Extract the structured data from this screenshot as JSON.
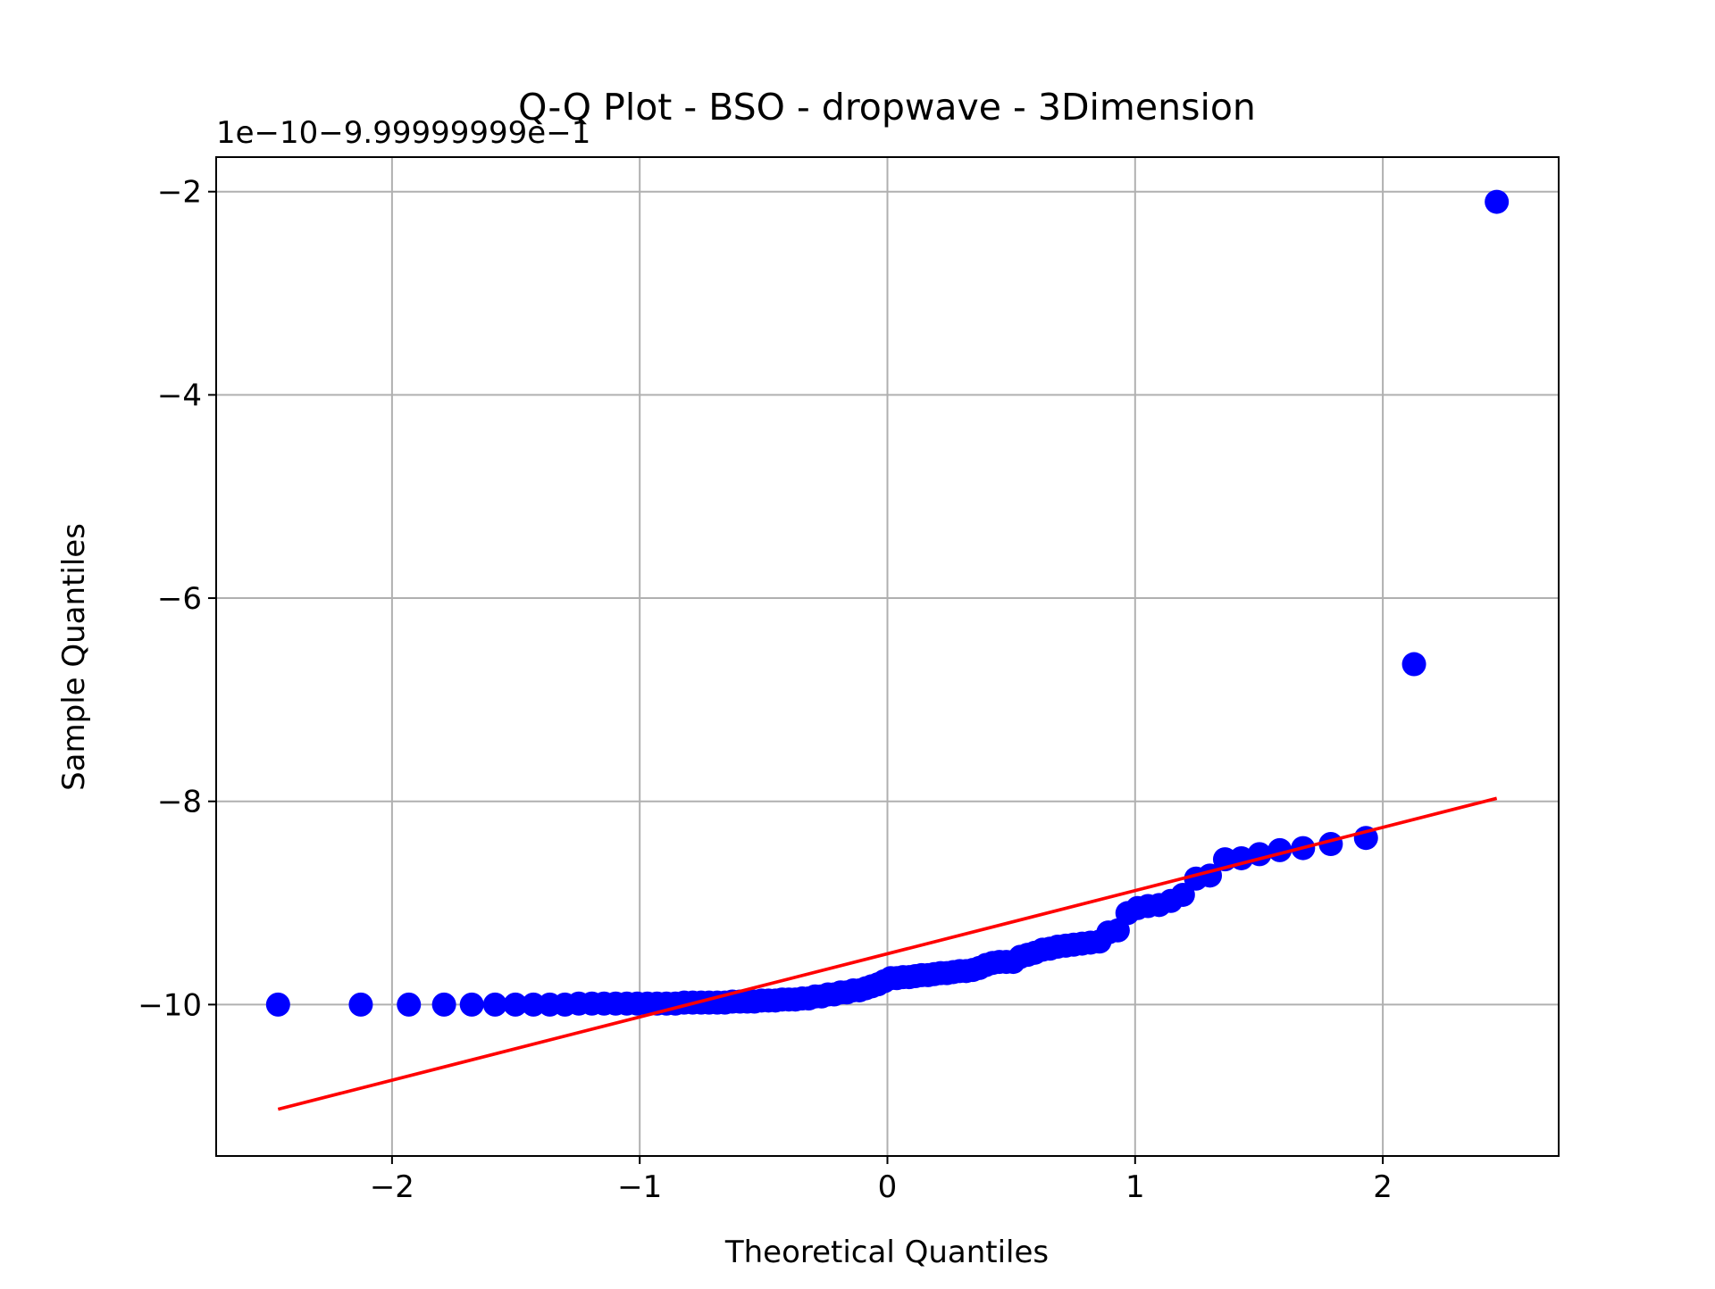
{
  "chart_data": {
    "type": "scatter",
    "title": "Q-Q Plot - BSO - dropwave - 3Dimension",
    "x_label": "Theoretical Quantiles",
    "y_label": "Sample Quantiles",
    "offset_label": "1e−10−9.99999999e−1",
    "xlim": [
      -2.71,
      2.71
    ],
    "ylim": [
      -11.49,
      -1.66
    ],
    "xticks": [
      {
        "value": -2,
        "label": "−2"
      },
      {
        "value": -1,
        "label": "−1"
      },
      0,
      1,
      2
    ],
    "yticks": [
      {
        "value": -2,
        "label": "−2"
      },
      {
        "value": -4,
        "label": "−4"
      },
      {
        "value": -6,
        "label": "−6"
      },
      {
        "value": -8,
        "label": "−8"
      },
      {
        "value": -10,
        "label": "−10"
      }
    ],
    "grid": true,
    "series": [
      {
        "type": "scatter",
        "color": "#0000ff",
        "x": [
          -2.46,
          -2.126,
          -1.932,
          -1.79,
          -1.678,
          -1.584,
          -1.502,
          -1.429,
          -1.363,
          -1.302,
          -1.246,
          -1.193,
          -1.144,
          -1.097,
          -1.052,
          -1.01,
          -0.969,
          -0.93,
          -0.892,
          -0.856,
          -0.82,
          -0.786,
          -0.752,
          -0.72,
          -0.687,
          -0.656,
          -0.626,
          -0.595,
          -0.566,
          -0.537,
          -0.508,
          -0.48,
          -0.452,
          -0.425,
          -0.398,
          -0.371,
          -0.344,
          -0.318,
          -0.292,
          -0.266,
          -0.24,
          -0.215,
          -0.189,
          -0.164,
          -0.138,
          -0.113,
          -0.088,
          -0.063,
          -0.038,
          -0.013,
          0.013,
          0.038,
          0.063,
          0.088,
          0.113,
          0.138,
          0.164,
          0.189,
          0.215,
          0.24,
          0.266,
          0.292,
          0.318,
          0.344,
          0.371,
          0.398,
          0.425,
          0.452,
          0.48,
          0.508,
          0.537,
          0.566,
          0.595,
          0.626,
          0.656,
          0.687,
          0.72,
          0.752,
          0.786,
          0.82,
          0.856,
          0.892,
          0.93,
          0.969,
          1.01,
          1.052,
          1.097,
          1.144,
          1.193,
          1.246,
          1.302,
          1.363,
          1.429,
          1.502,
          1.584,
          1.678,
          1.79,
          1.932,
          2.126,
          2.46
        ],
        "values": [
          -10,
          -10,
          -10,
          -10,
          -10,
          -10,
          -10,
          -10,
          -10,
          -10,
          -9.99,
          -9.99,
          -9.99,
          -9.99,
          -9.99,
          -9.99,
          -9.99,
          -9.99,
          -9.99,
          -9.99,
          -9.98,
          -9.98,
          -9.98,
          -9.98,
          -9.98,
          -9.98,
          -9.97,
          -9.97,
          -9.97,
          -9.97,
          -9.96,
          -9.96,
          -9.96,
          -9.95,
          -9.95,
          -9.95,
          -9.94,
          -9.94,
          -9.92,
          -9.92,
          -9.9,
          -9.9,
          -9.88,
          -9.88,
          -9.86,
          -9.86,
          -9.84,
          -9.82,
          -9.8,
          -9.77,
          -9.74,
          -9.74,
          -9.73,
          -9.73,
          -9.72,
          -9.71,
          -9.71,
          -9.7,
          -9.69,
          -9.69,
          -9.68,
          -9.67,
          -9.67,
          -9.66,
          -9.64,
          -9.61,
          -9.59,
          -9.58,
          -9.58,
          -9.58,
          -9.53,
          -9.51,
          -9.49,
          -9.46,
          -9.45,
          -9.43,
          -9.42,
          -9.41,
          -9.4,
          -9.39,
          -9.38,
          -9.29,
          -9.27,
          -9.1,
          -9.05,
          -9.03,
          -9.02,
          -8.98,
          -8.92,
          -8.76,
          -8.73,
          -8.57,
          -8.56,
          -8.52,
          -8.48,
          -8.46,
          -8.42,
          -8.36,
          -6.65,
          -2.1
        ]
      },
      {
        "type": "line",
        "color": "#ff0000",
        "x": [
          -2.46,
          2.46
        ],
        "values": [
          -11.03,
          -7.97
        ]
      }
    ]
  }
}
